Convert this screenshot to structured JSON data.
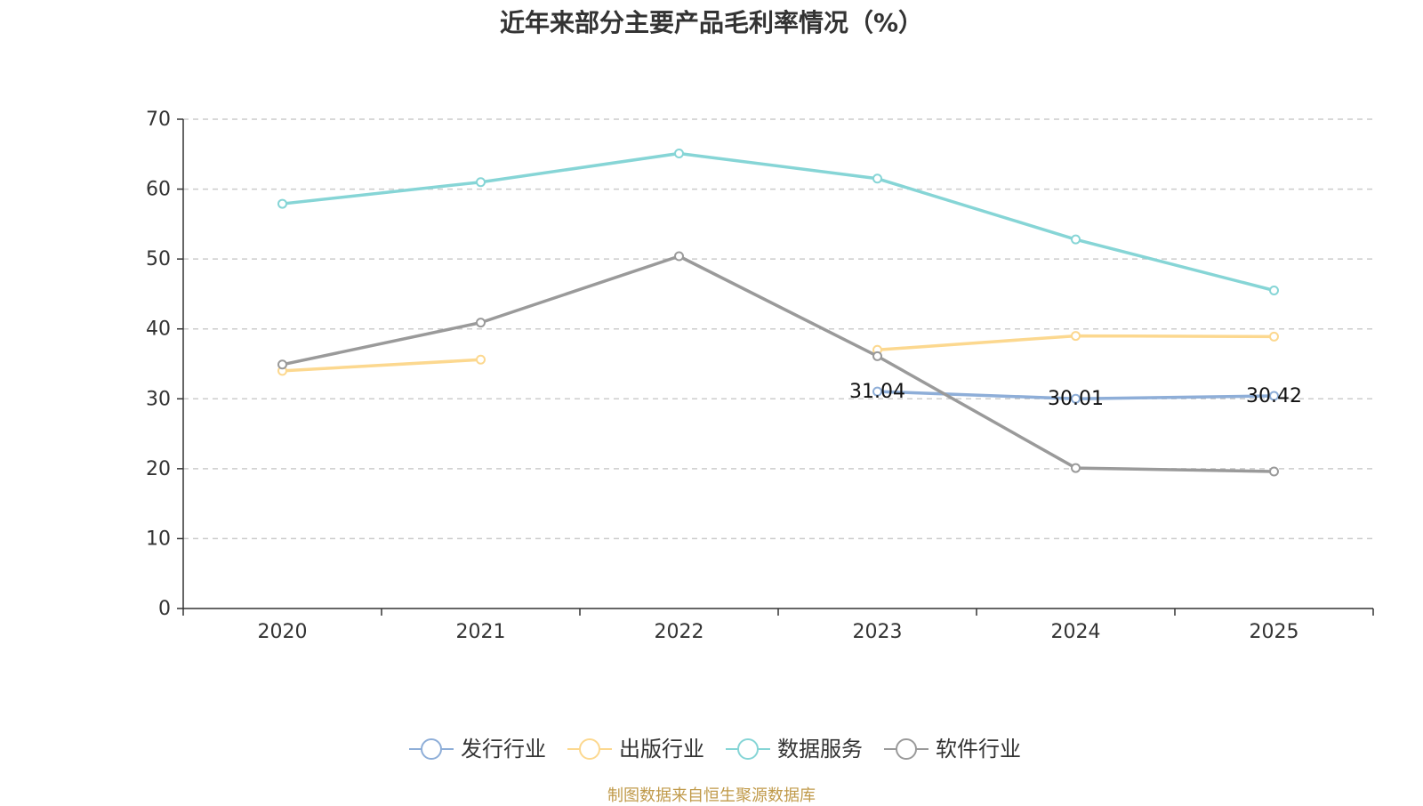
{
  "chart_data": {
    "type": "line",
    "title": "近年来部分主要产品毛利率情况（%）",
    "categories": [
      "2020",
      "2021",
      "2022",
      "2023",
      "2024",
      "2025"
    ],
    "ylim": [
      0,
      70
    ],
    "yticks": [
      0,
      10,
      20,
      30,
      40,
      50,
      60,
      70
    ],
    "grid": true,
    "legend_position": "bottom-center",
    "series": [
      {
        "name": "发行行业",
        "color": "#8eaed8",
        "values": [
          null,
          null,
          null,
          31.04,
          30.01,
          30.42
        ],
        "show_labels": true
      },
      {
        "name": "出版行业",
        "color": "#fcd88f",
        "values": [
          34.0,
          35.6,
          null,
          37.0,
          39.0,
          38.9
        ],
        "show_labels": false
      },
      {
        "name": "数据服务",
        "color": "#86d5d6",
        "values": [
          57.9,
          61.0,
          65.1,
          61.5,
          52.8,
          45.5
        ],
        "show_labels": false
      },
      {
        "name": "软件行业",
        "color": "#9a9a9a",
        "values": [
          34.9,
          40.9,
          50.4,
          36.1,
          20.1,
          19.6
        ],
        "show_labels": false
      }
    ]
  },
  "footer": {
    "source": "制图数据来自恒生聚源数据库"
  }
}
